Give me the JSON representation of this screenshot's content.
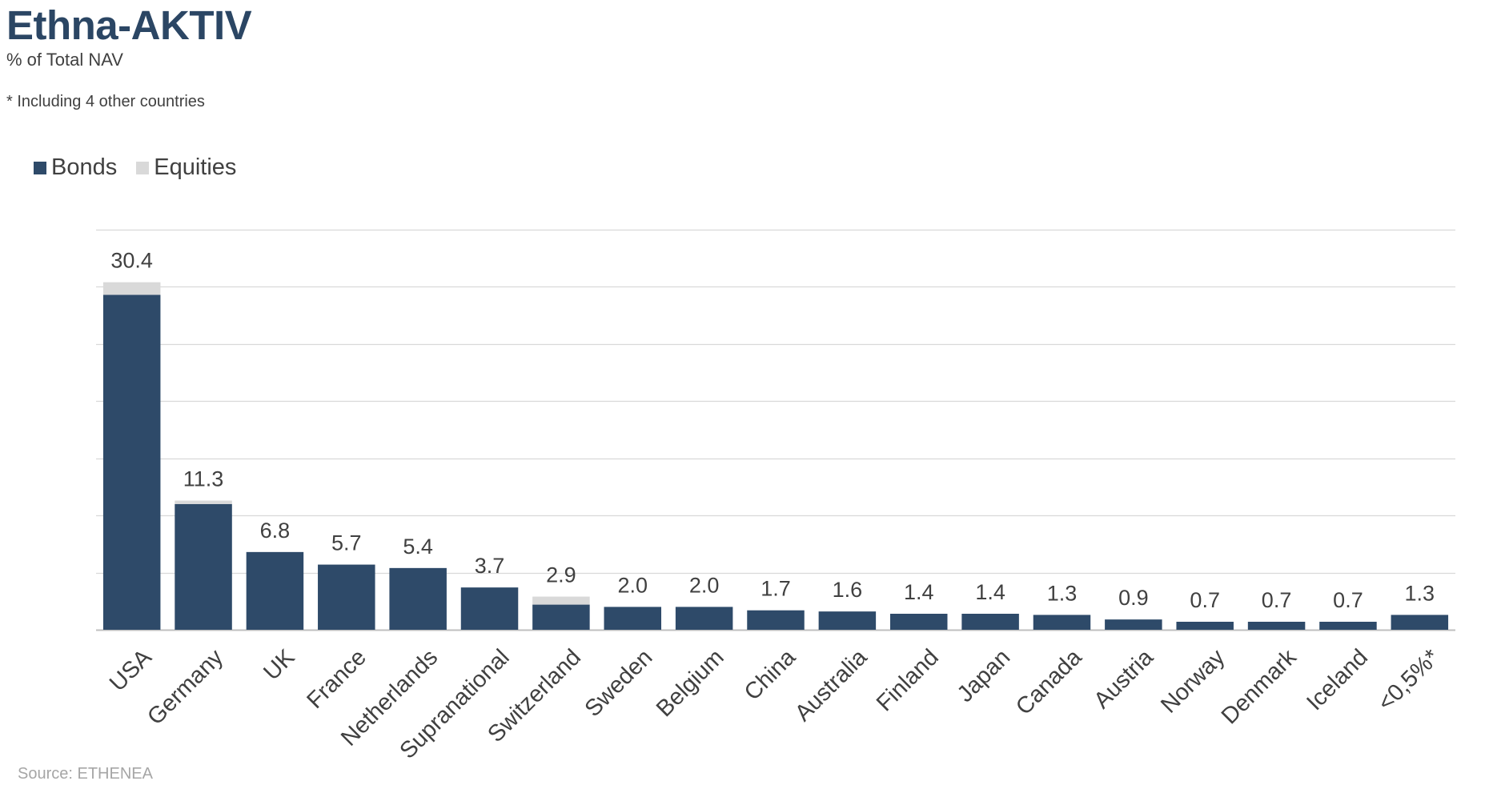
{
  "header": {
    "title": "Ethna-AKTIV",
    "subtitle": "% of Total NAV",
    "footnote": "* Including 4 other countries"
  },
  "source": "Source: ETHENEA",
  "colors": {
    "bonds": "#2e4a69",
    "equities": "#d9d9d9",
    "grid": "#d9d9d9",
    "text": "#404040"
  },
  "chart_data": {
    "type": "bar",
    "stacked": true,
    "categories": [
      "USA",
      "Germany",
      "UK",
      "France",
      "Netherlands",
      "Supranational",
      "Switzerland",
      "Sweden",
      "Belgium",
      "China",
      "Australia",
      "Finland",
      "Japan",
      "Canada",
      "Austria",
      "Norway",
      "Denmark",
      "Iceland",
      "<0,5%*"
    ],
    "series": [
      {
        "name": "Bonds",
        "values": [
          29.3,
          11.0,
          6.8,
          5.7,
          5.4,
          3.7,
          2.2,
          2.0,
          2.0,
          1.7,
          1.6,
          1.4,
          1.4,
          1.3,
          0.9,
          0.7,
          0.7,
          0.7,
          1.3
        ]
      },
      {
        "name": "Equities",
        "values": [
          1.1,
          0.3,
          0.0,
          0.0,
          0.0,
          0.0,
          0.7,
          0.0,
          0.0,
          0.0,
          0.0,
          0.0,
          0.0,
          0.0,
          0.0,
          0.0,
          0.0,
          0.0,
          0.0
        ]
      }
    ],
    "data_labels": [
      "30.4",
      "11.3",
      "6.8",
      "5.7",
      "5.4",
      "3.7",
      "2.9",
      "2.0",
      "2.0",
      "1.7",
      "1.6",
      "1.4",
      "1.4",
      "1.3",
      "0.9",
      "0.7",
      "0.7",
      "0.7",
      "1.3"
    ],
    "ylim": [
      0,
      35
    ],
    "ystep": 5,
    "grid": true,
    "legend": "top-left",
    "xlabel": "",
    "ylabel": ""
  }
}
